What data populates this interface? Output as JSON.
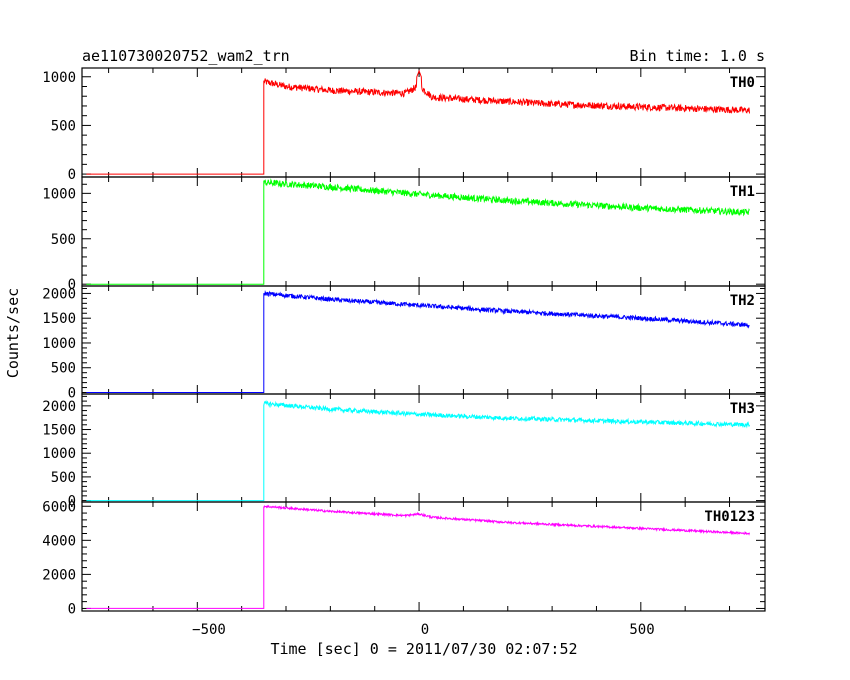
{
  "header": {
    "title": "ae110730020752_wam2_trn",
    "bin_time": "Bin time: 1.0 s"
  },
  "ylabel": "Counts/sec",
  "xlabel": "Time [sec] 0 = 2011/07/30 02:07:52",
  "x_ticks": [
    "−500",
    "0",
    "500"
  ],
  "chart_data": {
    "type": "line",
    "xlim": [
      -760,
      780
    ],
    "x_tick_values": [
      -500,
      0,
      500
    ],
    "trigger_start": -350,
    "x_end": 745,
    "panels": [
      {
        "name": "TH0",
        "color": "#ff0000",
        "ylim": [
          -30,
          1090
        ],
        "yticks": [
          0,
          500,
          1000
        ],
        "ytick_labels": [
          "0",
          "500",
          "1000"
        ],
        "background": 0,
        "points": [
          [
            -350,
            950
          ],
          [
            -300,
            900
          ],
          [
            -200,
            860
          ],
          [
            -100,
            840
          ],
          [
            -30,
            830
          ],
          [
            0,
            910
          ],
          [
            30,
            790
          ],
          [
            100,
            770
          ],
          [
            300,
            720
          ],
          [
            500,
            690
          ],
          [
            745,
            655
          ]
        ],
        "spikes": [
          [
            0,
            1060
          ]
        ],
        "noise": 35
      },
      {
        "name": "TH1",
        "color": "#00ff00",
        "ylim": [
          -20,
          1180
        ],
        "yticks": [
          0,
          500,
          1000
        ],
        "ytick_labels": [
          "0",
          "500",
          "1000"
        ],
        "background": 0,
        "points": [
          [
            -350,
            1120
          ],
          [
            -200,
            1070
          ],
          [
            0,
            990
          ],
          [
            200,
            920
          ],
          [
            500,
            840
          ],
          [
            745,
            790
          ]
        ],
        "spikes": [],
        "noise": 35
      },
      {
        "name": "TH2",
        "color": "#0000ff",
        "ylim": [
          -30,
          2150
        ],
        "yticks": [
          0,
          500,
          1000,
          1500,
          2000
        ],
        "ytick_labels": [
          "0",
          "500",
          "1000",
          "1500",
          "2000"
        ],
        "background": 0,
        "points": [
          [
            -350,
            2000
          ],
          [
            -200,
            1880
          ],
          [
            0,
            1760
          ],
          [
            200,
            1640
          ],
          [
            500,
            1500
          ],
          [
            745,
            1360
          ]
        ],
        "spikes": [],
        "noise": 45
      },
      {
        "name": "TH3",
        "color": "#00ffff",
        "ylim": [
          -30,
          2250
        ],
        "yticks": [
          0,
          500,
          1000,
          1500,
          2000
        ],
        "ytick_labels": [
          "0",
          "500",
          "1000",
          "1500",
          "2000"
        ],
        "background": 0,
        "points": [
          [
            -350,
            2050
          ],
          [
            -200,
            1930
          ],
          [
            0,
            1820
          ],
          [
            200,
            1740
          ],
          [
            500,
            1660
          ],
          [
            745,
            1600
          ]
        ],
        "spikes": [],
        "noise": 45
      },
      {
        "name": "TH0123",
        "color": "#ff00ff",
        "ylim": [
          -150,
          6250
        ],
        "yticks": [
          0,
          2000,
          4000,
          6000
        ],
        "ytick_labels": [
          "0",
          "2000",
          "4000",
          "6000"
        ],
        "background": 0,
        "points": [
          [
            -350,
            6000
          ],
          [
            -200,
            5700
          ],
          [
            -30,
            5450
          ],
          [
            0,
            5550
          ],
          [
            30,
            5350
          ],
          [
            200,
            5050
          ],
          [
            500,
            4700
          ],
          [
            745,
            4400
          ]
        ],
        "spikes": [],
        "noise": 60
      }
    ]
  }
}
